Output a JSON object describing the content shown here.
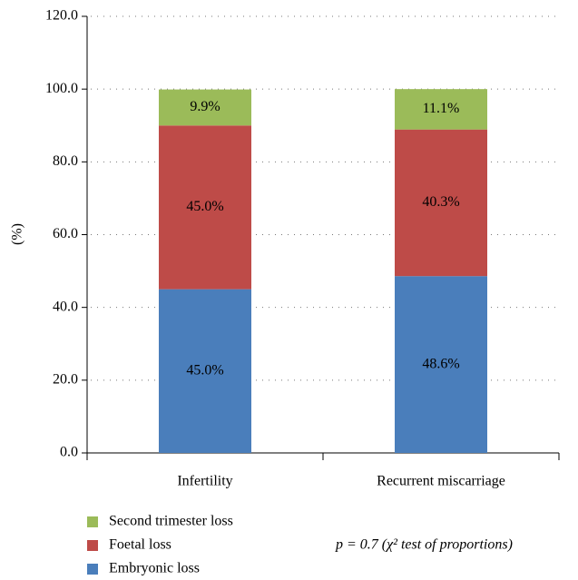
{
  "chart_data": {
    "type": "stacked_bar",
    "categories": [
      "Infertility",
      "Recurrent miscarriage"
    ],
    "series": [
      {
        "name": "Embryonic loss",
        "color": "#4a7ebb",
        "values": [
          45.0,
          48.6
        ],
        "value_labels": [
          "45.0%",
          "48.6%"
        ]
      },
      {
        "name": "Foetal loss",
        "color": "#be4b48",
        "values": [
          45.0,
          40.3
        ],
        "value_labels": [
          "45.0%",
          "40.3%"
        ]
      },
      {
        "name": "Second trimester loss",
        "color": "#9bbb59",
        "values": [
          9.9,
          11.1
        ],
        "value_labels": [
          "9.9%",
          "11.1%"
        ]
      }
    ],
    "ylabel": "(%)",
    "ylim": [
      0,
      120
    ],
    "yticks": [
      {
        "value": 0,
        "label": "0.0"
      },
      {
        "value": 20,
        "label": "20.0"
      },
      {
        "value": 40,
        "label": "40.0"
      },
      {
        "value": 60,
        "label": "60.0"
      },
      {
        "value": 80,
        "label": "80.0"
      },
      {
        "value": 100,
        "label": "100.0"
      },
      {
        "value": 120,
        "label": "120.0"
      }
    ],
    "grid": true,
    "annotation": "p = 0.7 (χ² test of proportions)"
  }
}
